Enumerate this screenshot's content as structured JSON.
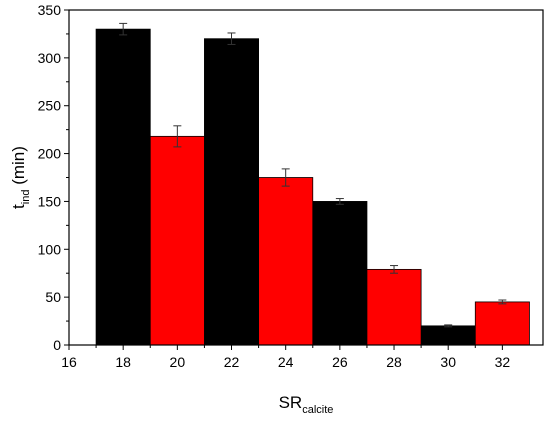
{
  "chart_data": {
    "type": "bar",
    "xlabel": "SR",
    "xlabel_sub": "calcite",
    "ylabel": "t",
    "ylabel_sub": "ind",
    "ylabel_unit": " (min)",
    "xlim": [
      16,
      33.5
    ],
    "ylim": [
      0,
      350
    ],
    "xticks": [
      16,
      18,
      20,
      22,
      24,
      26,
      28,
      30,
      32
    ],
    "yticks": [
      0,
      50,
      100,
      150,
      200,
      250,
      300,
      350
    ],
    "grid": false,
    "legend": "none",
    "bar_width": 2,
    "series": [
      {
        "color": "#000000",
        "x": [
          18,
          22,
          26,
          30
        ],
        "values": [
          330,
          320,
          150,
          20
        ],
        "errors": [
          6,
          6,
          3,
          1
        ]
      },
      {
        "color": "#ff0000",
        "x": [
          20,
          24,
          28,
          32
        ],
        "values": [
          218,
          175,
          79,
          45
        ],
        "errors": [
          11,
          9,
          4,
          2
        ]
      }
    ]
  }
}
